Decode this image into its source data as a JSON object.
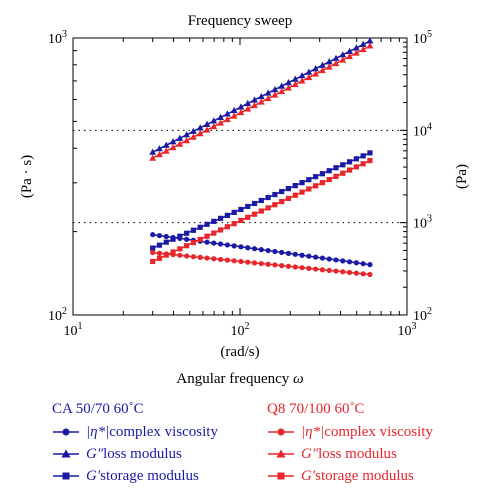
{
  "chart_data": {
    "type": "line",
    "title": "Frequency sweep",
    "xlabel_unit": "(rad/s)",
    "xlabel_name": "Angular frequency",
    "xlabel_symbol": "ω",
    "ylabel_left": "(Pa · s)",
    "ylabel_right": "(Pa)",
    "x_scale": "log",
    "y_left_scale": "log",
    "y_right_scale": "log",
    "xlim": [
      10,
      1000
    ],
    "ylim_left": [
      100,
      1000
    ],
    "ylim_right": [
      100,
      100000
    ],
    "x_ticks": [
      {
        "base": "10",
        "exp": "1"
      },
      {
        "base": "10",
        "exp": "2"
      },
      {
        "base": "10",
        "exp": "3"
      }
    ],
    "y_left_ticks": [
      {
        "base": "10",
        "exp": "2"
      },
      {
        "base": "10",
        "exp": "3"
      }
    ],
    "y_right_ticks": [
      {
        "base": "10",
        "exp": "2"
      },
      {
        "base": "10",
        "exp": "3"
      },
      {
        "base": "10",
        "exp": "4"
      },
      {
        "base": "10",
        "exp": "5"
      }
    ],
    "grid": "dotted horizontal lines at 10^3 and 10^4 (right axis)",
    "legend_placement": "bottom",
    "x_range": [
      30,
      600
    ],
    "n_points": 33,
    "colors": {
      "blue": "#1a1aa6",
      "red": "#e8262b"
    },
    "groups": [
      {
        "name": "CA 50/70 60˚C",
        "color": "#1a1aa6",
        "series": [
          {
            "label_sym": "|η*|",
            "label_text": " complex viscosity",
            "marker": "circle",
            "axis": "left",
            "y_start": 195,
            "y_end": 152
          },
          {
            "label_sym": "G″",
            "label_text": " loss modulus",
            "marker": "triangle",
            "axis": "right",
            "y_start": 5800,
            "y_end": 93000
          },
          {
            "label_sym": "G′",
            "label_text": " storage modulus",
            "marker": "square",
            "axis": "right",
            "y_start": 530,
            "y_end": 5700
          }
        ]
      },
      {
        "name": "Q8 70/100 60˚C",
        "color": "#e8262b",
        "series": [
          {
            "label_sym": "|η*|",
            "label_text": " complex viscosity",
            "marker": "circle",
            "axis": "left",
            "y_start": 168,
            "y_end": 140
          },
          {
            "label_sym": "G″",
            "label_text": " loss modulus",
            "marker": "triangle",
            "axis": "right",
            "y_start": 5000,
            "y_end": 82000
          },
          {
            "label_sym": "G′",
            "label_text": " storage modulus",
            "marker": "square",
            "axis": "right",
            "y_start": 380,
            "y_end": 4700
          }
        ]
      }
    ]
  }
}
